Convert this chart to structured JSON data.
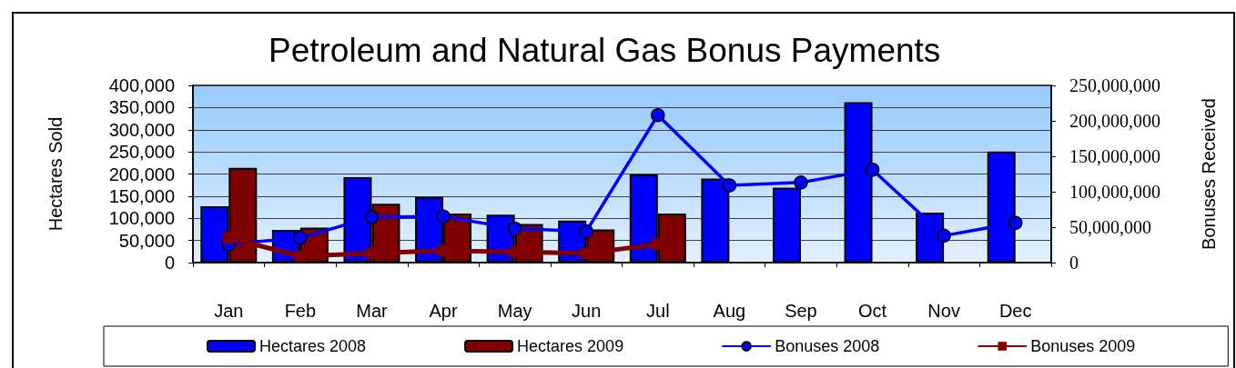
{
  "chart_data": {
    "type": "bar",
    "title": "Petroleum and Natural Gas Bonus Payments",
    "ylabel": "Hectares Sold",
    "y2label": "Bonuses Received",
    "categories": [
      "Jan",
      "Feb",
      "Mar",
      "Apr",
      "May",
      "Jun",
      "Jul",
      "Aug",
      "Sep",
      "Oct",
      "Nov",
      "Dec"
    ],
    "series": [
      {
        "name": "Hectares 2008",
        "color": "#0000ff",
        "values": [
          127000,
          74000,
          193000,
          148000,
          108000,
          95000,
          199000,
          190000,
          169000,
          362000,
          113000,
          251000
        ]
      },
      {
        "name": "Hectares 2009",
        "color": "#800000",
        "values": [
          214000,
          79000,
          133000,
          111000,
          87000,
          75000,
          111000,
          null,
          null,
          null,
          null,
          null
        ]
      },
      {
        "name": "Bonuses 2008",
        "type": "line",
        "axis": "y2",
        "color": "#0000ff",
        "marker": "circle",
        "values": [
          26000000,
          35000000,
          64000000,
          65000000,
          48000000,
          44000000,
          208000000,
          109000000,
          113000000,
          131000000,
          38000000,
          56000000
        ]
      },
      {
        "name": "Bonuses 2009",
        "type": "line",
        "axis": "y2",
        "color": "#800000",
        "marker": "square",
        "values": [
          35000000,
          9000000,
          13000000,
          17000000,
          15000000,
          13000000,
          26000000,
          null,
          null,
          null,
          null,
          null
        ]
      }
    ],
    "ylim": [
      0,
      400000
    ],
    "yticks": [
      0,
      {
        "value": 50000,
        "label": "50,000"
      },
      {
        "value": 100000,
        "label": "100,000"
      },
      {
        "value": 150000,
        "label": "150,000"
      },
      {
        "value": 200000,
        "label": "200,000"
      },
      {
        "value": 250000,
        "label": "250,000"
      },
      {
        "value": 300000,
        "label": "300,000"
      },
      {
        "value": 350000,
        "label": "350,000"
      },
      {
        "value": 400000,
        "label": "400,000"
      }
    ],
    "y2lim": [
      0,
      250000000
    ],
    "y2ticks": [
      0,
      {
        "value": 50000000,
        "label": "50,000,000"
      },
      {
        "value": 100000000,
        "label": "100,000,000"
      },
      {
        "value": 150000000,
        "label": "150,000,000"
      },
      {
        "value": 200000000,
        "label": "200,000,000"
      },
      {
        "value": 250000000,
        "label": "250,000,000"
      }
    ],
    "grid": "y",
    "legend": "bottom"
  }
}
